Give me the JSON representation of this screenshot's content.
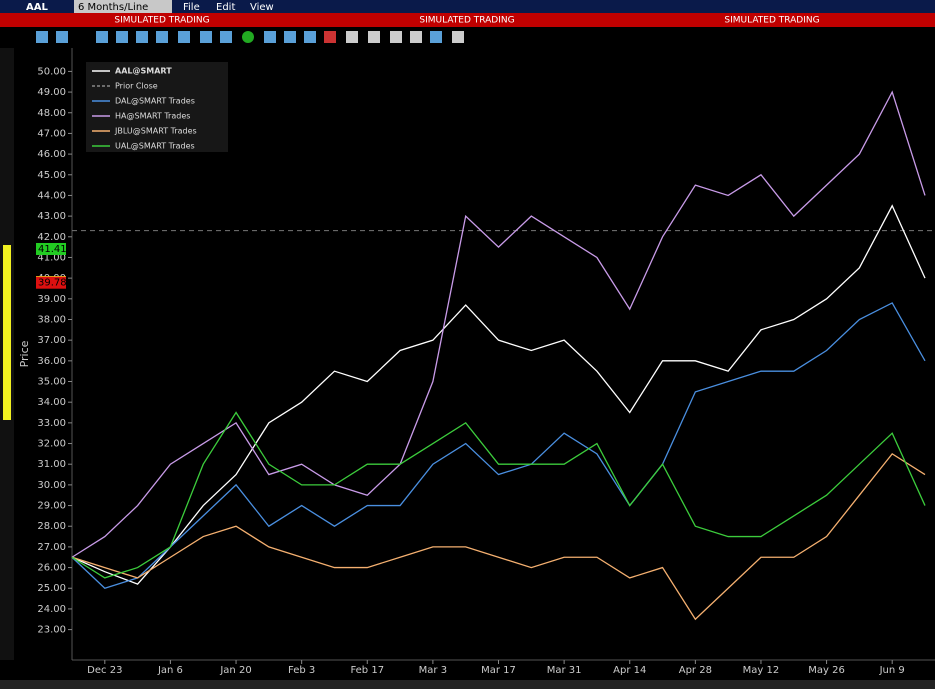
{
  "toolbar": {
    "symbol": "AAL",
    "period": "6 Months/Line",
    "menu": [
      "File",
      "Edit",
      "View"
    ]
  },
  "banner": [
    "SIMULATED TRADING",
    "SIMULATED TRADING",
    "SIMULATED TRADING"
  ],
  "chart_data": {
    "type": "line",
    "ylabel": "Price",
    "categories": [
      null,
      "Dec 23",
      null,
      "Jan 6",
      null,
      "Jan 20",
      null,
      "Feb 3",
      null,
      "Feb 17",
      null,
      "Mar 3",
      null,
      "Mar 17",
      null,
      "Mar 31",
      null,
      "Apr 14",
      null,
      "Apr 28",
      null,
      "May 12",
      null,
      "May 26",
      null,
      "Jun 9",
      null
    ],
    "series": [
      {
        "name": "AAL@SMART",
        "color": "#ffffff",
        "values": [
          26.5,
          25.8,
          25.2,
          27,
          29,
          30.5,
          33,
          34,
          35.5,
          35,
          36.5,
          37,
          38.7,
          37,
          36.5,
          37,
          35.5,
          33.5,
          36,
          36,
          35.5,
          37.5,
          38,
          39,
          40.5,
          43.5,
          40
        ]
      },
      {
        "name": "DAL@SMART Trades",
        "color": "#4a8fe0",
        "values": [
          26.5,
          25,
          25.5,
          27,
          28.5,
          30,
          28,
          29,
          28,
          29,
          29,
          31,
          32,
          30.5,
          31,
          32.5,
          31.5,
          29,
          31,
          34.5,
          35,
          35.5,
          35.5,
          36.5,
          38,
          38.8,
          36
        ]
      },
      {
        "name": "HA@SMART Trades",
        "color": "#c89be8",
        "values": [
          26.5,
          27.5,
          29,
          31,
          32,
          33,
          30.5,
          31,
          30,
          29.5,
          31,
          35,
          43,
          41.5,
          43,
          42,
          41,
          38.5,
          42,
          44.5,
          44,
          45,
          43,
          44.5,
          46,
          49,
          44
        ]
      },
      {
        "name": "JBLU@SMART Trades",
        "color": "#f5b070",
        "values": [
          26.5,
          26,
          25.5,
          26.5,
          27.5,
          28,
          27,
          26.5,
          26,
          26,
          26.5,
          27,
          27,
          26.5,
          26,
          26.5,
          26.5,
          25.5,
          26,
          23.5,
          25,
          26.5,
          26.5,
          27.5,
          29.5,
          31.5,
          30.5
        ]
      },
      {
        "name": "UAL@SMART Trades",
        "color": "#3ccc3c",
        "values": [
          26.5,
          25.5,
          26,
          27,
          31,
          33.5,
          31,
          30,
          30,
          31,
          31,
          32,
          33,
          31,
          31,
          31,
          32,
          29,
          31,
          28,
          27.5,
          27.5,
          28.5,
          29.5,
          31,
          32.5,
          29
        ]
      }
    ],
    "prior_close": {
      "name": "Prior Close",
      "value": 42.3
    },
    "price_tags": [
      {
        "value": 41.41,
        "color": "#22cc22"
      },
      {
        "value": 39.81,
        "color": "#f0f020"
      },
      {
        "value": 39.78,
        "color": "#dd1010"
      }
    ],
    "ylim": [
      22.4,
      50.6
    ],
    "yticks": [
      {
        "value": 23,
        "label": "23.00"
      },
      {
        "value": 24,
        "label": "24.00"
      },
      {
        "value": 25,
        "label": "25.00"
      },
      {
        "value": 26,
        "label": "26.00"
      },
      {
        "value": 27,
        "label": "27.00"
      },
      {
        "value": 28,
        "label": "28.00"
      },
      {
        "value": 29,
        "label": "29.00"
      },
      {
        "value": 30,
        "label": "30.00"
      },
      {
        "value": 31,
        "label": "31.00"
      },
      {
        "value": 32,
        "label": "32.00"
      },
      {
        "value": 33,
        "label": "33.00"
      },
      {
        "value": 34,
        "label": "34.00"
      },
      {
        "value": 35,
        "label": "35.00"
      },
      {
        "value": 36,
        "label": "36.00"
      },
      {
        "value": 37,
        "label": "37.00"
      },
      {
        "value": 38,
        "label": "38.00"
      },
      {
        "value": 39,
        "label": "39.00"
      },
      {
        "value": 40,
        "label": "40.00"
      },
      {
        "value": 41,
        "label": "41.00"
      },
      {
        "value": 42,
        "label": "42.00"
      },
      {
        "value": 43,
        "label": "43.00"
      },
      {
        "value": 44,
        "label": "44.00"
      },
      {
        "value": 45,
        "label": "45.00"
      },
      {
        "value": 46,
        "label": "46.00"
      },
      {
        "value": 47,
        "label": "47.00"
      },
      {
        "value": 48,
        "label": "48.00"
      },
      {
        "value": 49,
        "label": "49.00"
      },
      {
        "value": 50,
        "label": "50.00"
      }
    ],
    "grid": false
  }
}
